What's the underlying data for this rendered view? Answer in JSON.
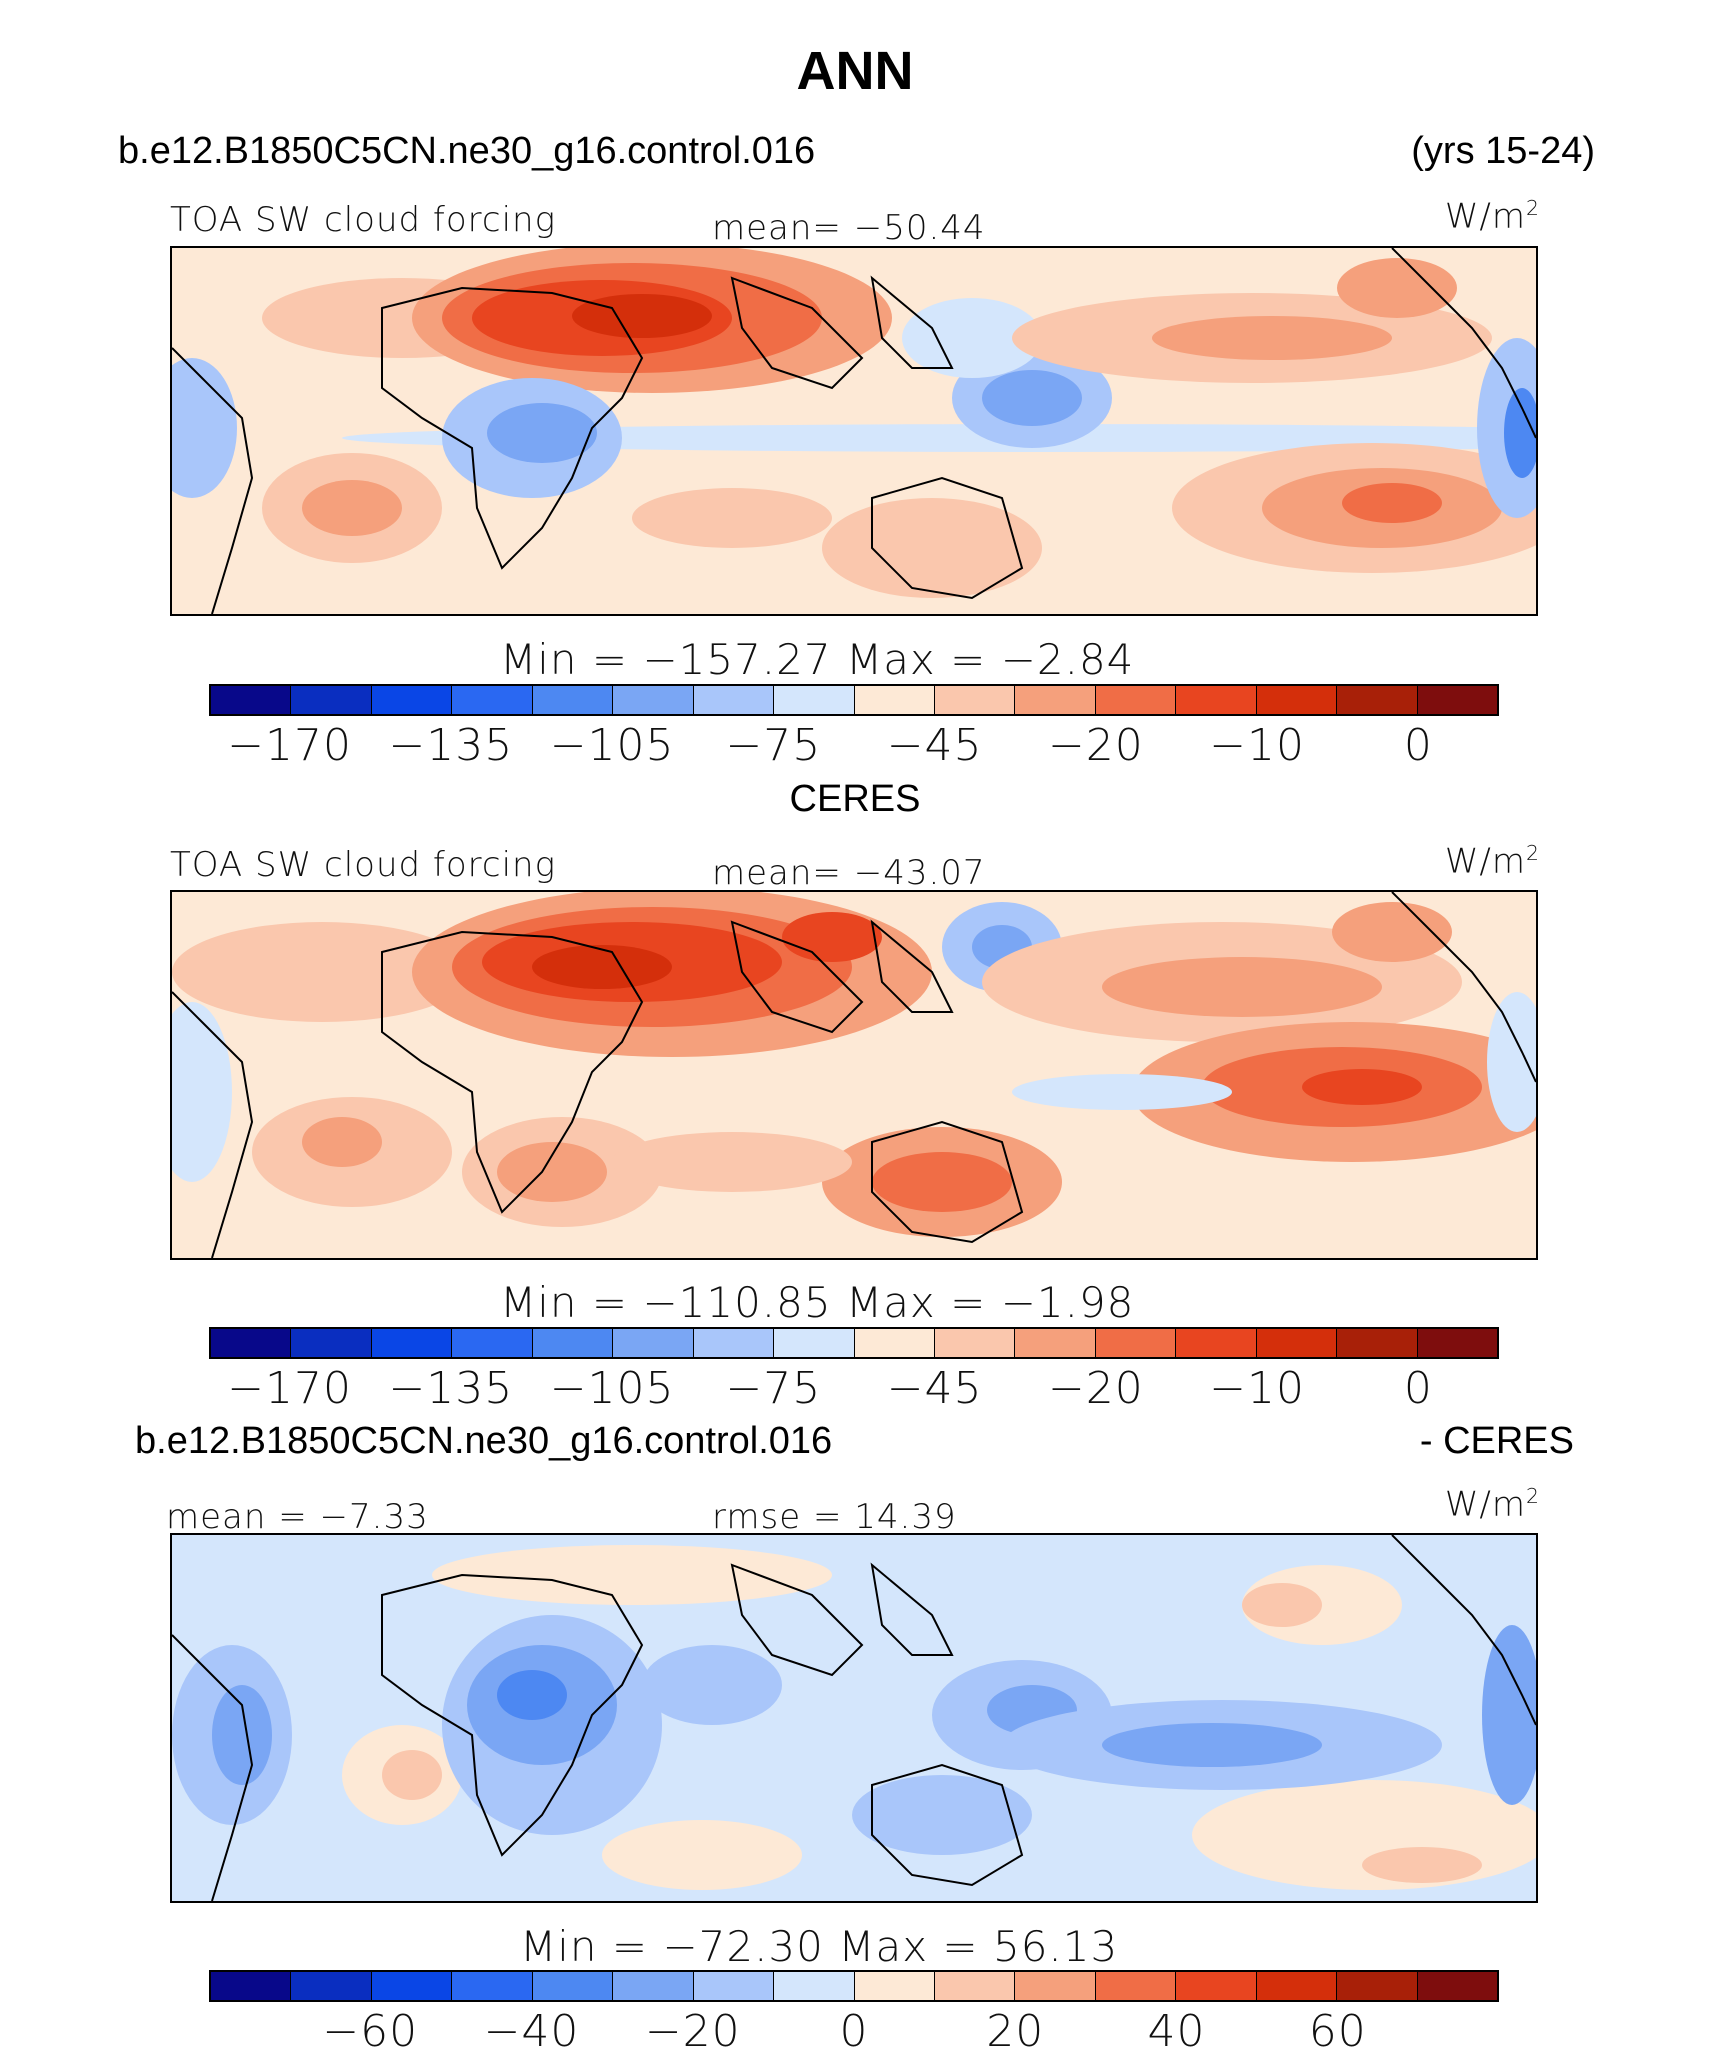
{
  "title": "ANN",
  "colors": {
    "levels": [
      "#08088a",
      "#0a2ec0",
      "#0a46e6",
      "#2a68f2",
      "#4d88f2",
      "#7aa6f4",
      "#a9c6fa",
      "#d4e6fc",
      "#fde9d6",
      "#fac7ad",
      "#f5a07c",
      "#f06d46",
      "#e84520",
      "#d42f0b",
      "#a82008",
      "#7e0d0d"
    ]
  },
  "chart_data": [
    {
      "type": "heatmap",
      "title": "TOA SW cloud forcing",
      "case": "b.e12.B1850C5CN.ne30_g16.control.016",
      "period": "(yrs 15-24)",
      "units": "W/m2",
      "mean_label": "mean=",
      "mean": "−50.44",
      "min_label": "Min  =",
      "min": "−157.27",
      "max_label": "Max  =",
      "max": "−2.84",
      "colorbar_ticks": [
        "−170",
        "−135",
        "−105",
        "−75",
        "−45",
        "−20",
        "−10",
        "0"
      ]
    },
    {
      "type": "heatmap",
      "title": "TOA SW cloud forcing",
      "case": "CERES",
      "units": "W/m2",
      "mean_label": "mean=",
      "mean": "−43.07",
      "min_label": "Min  =",
      "min": "−110.85",
      "max_label": "Max  =",
      "max": "−1.98",
      "colorbar_ticks": [
        "−170",
        "−135",
        "−105",
        "−75",
        "−45",
        "−20",
        "−10",
        "0"
      ]
    },
    {
      "type": "heatmap",
      "case": "b.e12.B1850C5CN.ne30_g16.control.016",
      "case_suffix": "- CERES",
      "units": "W/m2",
      "mean_label": "mean =",
      "mean": "−7.33",
      "rmse_label": "rmse =",
      "rmse": "14.39",
      "min_label": "Min  =",
      "min": "−72.30",
      "max_label": "Max  =",
      "max": "56.13",
      "colorbar_ticks": [
        "−60",
        "−40",
        "−20",
        "0",
        "20",
        "40",
        "60"
      ]
    }
  ]
}
